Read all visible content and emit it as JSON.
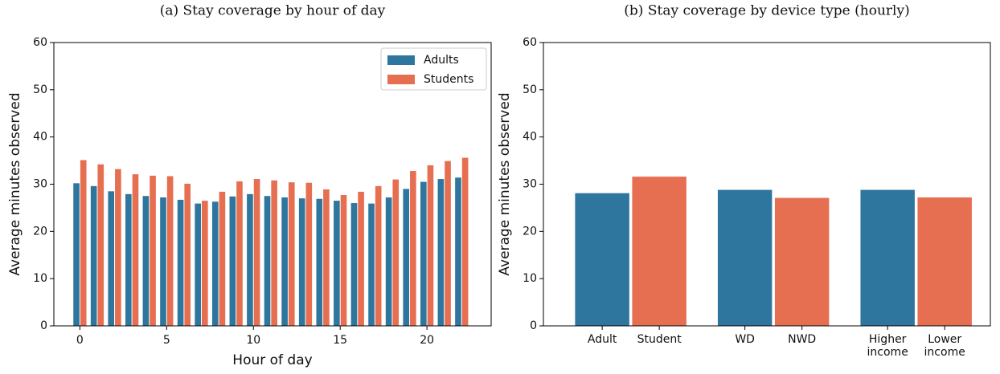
{
  "chart_data": [
    {
      "type": "bar",
      "title": "(a) Stay coverage by hour of day",
      "xlabel": "Hour of day",
      "ylabel": "Average minutes observed",
      "x": [
        0,
        1,
        2,
        3,
        4,
        5,
        6,
        7,
        8,
        9,
        10,
        11,
        12,
        13,
        14,
        15,
        16,
        17,
        18,
        19,
        20,
        21,
        22
      ],
      "series": [
        {
          "name": "Adults",
          "color": "#2e769e",
          "values": [
            30.2,
            29.6,
            28.5,
            27.9,
            27.5,
            27.2,
            26.7,
            25.9,
            26.3,
            27.4,
            27.9,
            27.5,
            27.2,
            27.0,
            26.9,
            26.5,
            26.0,
            25.9,
            27.2,
            29.0,
            30.5,
            31.1,
            31.4
          ]
        },
        {
          "name": "Students",
          "color": "#e76f51",
          "values": [
            35.1,
            34.2,
            33.2,
            32.1,
            31.8,
            31.7,
            30.1,
            26.5,
            28.4,
            30.6,
            31.1,
            30.8,
            30.4,
            30.3,
            28.9,
            27.7,
            28.4,
            29.6,
            31.0,
            32.8,
            34.0,
            34.9,
            35.6
          ]
        }
      ],
      "xlim": [
        -1.5,
        23.7
      ],
      "xticks": [
        0,
        5,
        10,
        15,
        20
      ],
      "ylim": [
        0,
        60
      ],
      "yticks": [
        0,
        10,
        20,
        30,
        40,
        50,
        60
      ],
      "legend": "upper right"
    },
    {
      "type": "bar",
      "title": "(b) Stay coverage by device type (hourly)",
      "ylabel": "Average minutes observed",
      "categories": [
        "Adult",
        "Student",
        "WD",
        "NWD",
        "Higher income",
        "Lower income"
      ],
      "values": [
        28.1,
        31.6,
        28.8,
        27.1,
        28.8,
        27.2
      ],
      "colors": [
        "#2e769e",
        "#e76f51",
        "#2e769e",
        "#e76f51",
        "#2e769e",
        "#e76f51"
      ],
      "ylim": [
        0,
        60
      ],
      "yticks": [
        0,
        10,
        20,
        30,
        40,
        50,
        60
      ]
    }
  ]
}
